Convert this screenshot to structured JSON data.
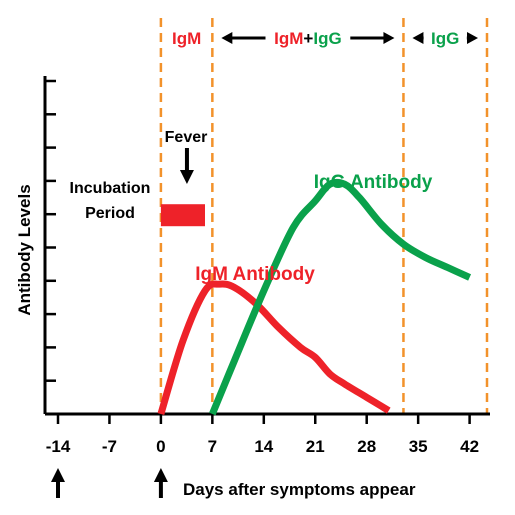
{
  "colors": {
    "igm": "#ee2229",
    "igg": "#0aa14b",
    "phase_line": "#f2922b",
    "axis": "#000000"
  },
  "chart_data": {
    "type": "line",
    "xlabel": "Days after symptoms appear",
    "ylabel": "Antibody Levels",
    "xlim": [
      -14,
      43
    ],
    "ylim": [
      0,
      10
    ],
    "y_tick_count": 10,
    "y_tick_labels": "none",
    "grid": false,
    "legend": "none",
    "x_ticks": [
      -14,
      -7,
      0,
      7,
      14,
      21,
      28,
      35,
      42
    ],
    "x_tick_labels": [
      "-14",
      "-7",
      "0",
      "7",
      "14",
      "21",
      "28",
      "35",
      "42"
    ],
    "series": [
      {
        "name": "IgM Antibody",
        "color": "#ee2229",
        "x": [
          0,
          3,
          6,
          8,
          10,
          13,
          16,
          19,
          21,
          23,
          25,
          28,
          31
        ],
        "y": [
          0,
          2.2,
          3.7,
          3.9,
          3.8,
          3.3,
          2.6,
          2.0,
          1.7,
          1.2,
          0.9,
          0.5,
          0.1
        ]
      },
      {
        "name": "IgG Antibody",
        "color": "#0aa14b",
        "x": [
          7,
          10,
          14,
          18,
          21,
          23,
          25,
          27,
          30,
          33,
          36,
          39,
          42
        ],
        "y": [
          0,
          1.6,
          3.7,
          5.6,
          6.4,
          6.9,
          6.9,
          6.5,
          5.7,
          5.1,
          4.7,
          4.4,
          4.1
        ]
      }
    ],
    "phase_boundaries": [
      0,
      7,
      33,
      43
    ],
    "phases": [
      {
        "parts": [
          {
            "t": "I",
            "c": "igm"
          },
          {
            "t": "gM",
            "c": "igm"
          }
        ],
        "left_arrow": false,
        "right_arrow": false
      },
      {
        "parts": [
          {
            "t": "I",
            "c": "igm"
          },
          {
            "t": "gM",
            "c": "igm"
          },
          {
            "t": "+",
            "c": "axis"
          },
          {
            "t": "I",
            "c": "igg"
          },
          {
            "t": "gG",
            "c": "igg"
          }
        ],
        "left_arrow": true,
        "right_arrow": true
      },
      {
        "parts": [
          {
            "t": "I",
            "c": "igg"
          },
          {
            "t": "gG",
            "c": "igg"
          }
        ],
        "left_arrow": true,
        "right_arrow": true
      }
    ],
    "annotations": {
      "incubation_line1": "Incubation",
      "incubation_line2": "Period",
      "fever": "Fever",
      "fever_range": [
        0,
        6
      ],
      "fever_level": 6.3,
      "bottom_arrows_at": [
        -14,
        0
      ]
    }
  }
}
